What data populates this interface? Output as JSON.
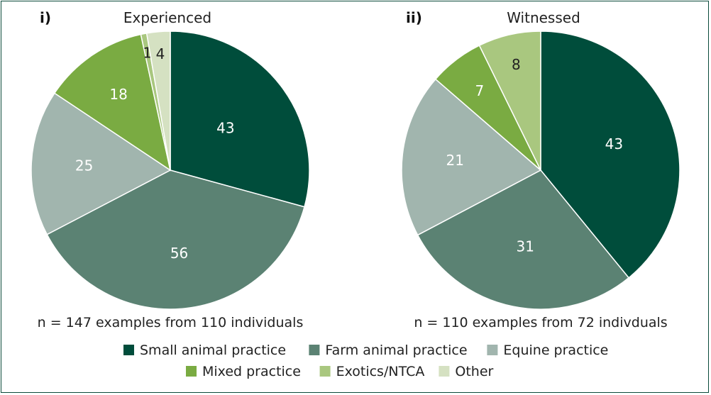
{
  "chart_data": [
    {
      "type": "pie",
      "panel": "i)",
      "title": "Experienced",
      "caption": "n = 147 examples from 110 individuals",
      "slices": [
        {
          "label": "Small animal practice",
          "value": 43,
          "color": "#004d3b",
          "text_color": "#ffffff"
        },
        {
          "label": "Farm animal practice",
          "value": 56,
          "color": "#5b8273",
          "text_color": "#ffffff"
        },
        {
          "label": "Equine practice",
          "value": 25,
          "color": "#a1b5ae",
          "text_color": "#ffffff"
        },
        {
          "label": "Mixed practice",
          "value": 18,
          "color": "#7aab42",
          "text_color": "#ffffff"
        },
        {
          "label": "Exotics/NTCA",
          "value": 1,
          "color": "#a9c77f",
          "text_color": "#222222"
        },
        {
          "label": "Other",
          "value": 4,
          "color": "#d5e1c2",
          "text_color": "#222222"
        }
      ]
    },
    {
      "type": "pie",
      "panel": "ii)",
      "title": "Witnessed",
      "caption": "n = 110 examples from 72 indivduals",
      "slices": [
        {
          "label": "Small animal practice",
          "value": 43,
          "color": "#004d3b",
          "text_color": "#ffffff"
        },
        {
          "label": "Farm animal practice",
          "value": 31,
          "color": "#5b8273",
          "text_color": "#ffffff"
        },
        {
          "label": "Equine practice",
          "value": 21,
          "color": "#a1b5ae",
          "text_color": "#ffffff"
        },
        {
          "label": "Mixed practice",
          "value": 7,
          "color": "#7aab42",
          "text_color": "#ffffff"
        },
        {
          "label": "Exotics/NTCA",
          "value": 8,
          "color": "#a9c77f",
          "text_color": "#222222"
        }
      ]
    }
  ],
  "legend": {
    "placement": "bottom",
    "rows": [
      [
        {
          "label": "Small animal practice",
          "color": "#004d3b"
        },
        {
          "label": "Farm animal practice",
          "color": "#5b8273"
        },
        {
          "label": "Equine practice",
          "color": "#a1b5ae"
        }
      ],
      [
        {
          "label": "Mixed practice",
          "color": "#7aab42"
        },
        {
          "label": "Exotics/NTCA",
          "color": "#a9c77f"
        },
        {
          "label": "Other",
          "color": "#d5e1c2"
        }
      ]
    ]
  }
}
